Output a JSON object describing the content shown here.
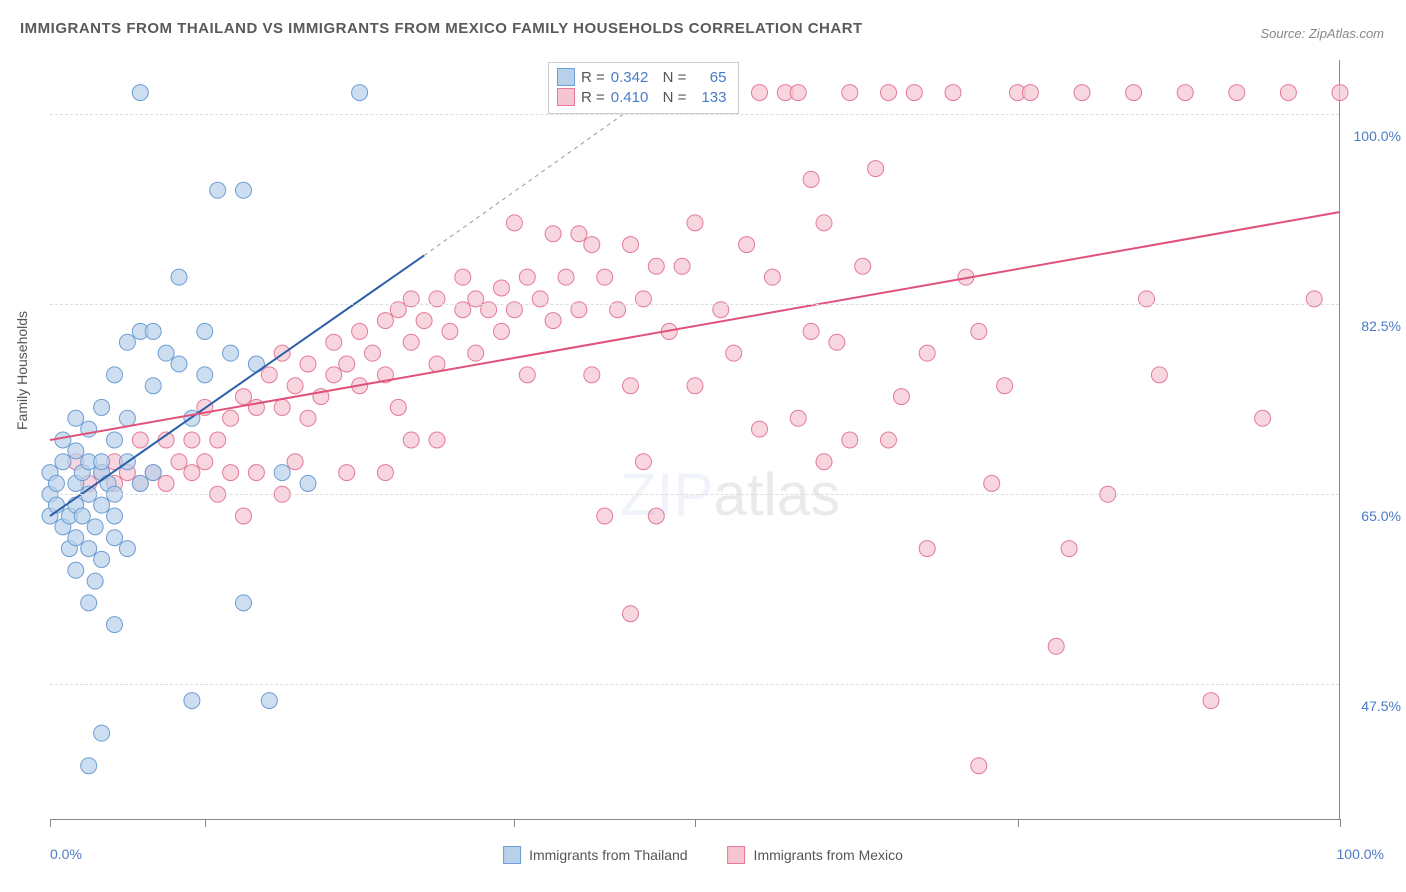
{
  "title": "IMMIGRANTS FROM THAILAND VS IMMIGRANTS FROM MEXICO FAMILY HOUSEHOLDS CORRELATION CHART",
  "source": "Source: ZipAtlas.com",
  "ylabel": "Family Households",
  "xaxis": {
    "min_label": "0.0%",
    "max_label": "100.0%",
    "xlim": [
      0,
      100
    ],
    "ticks": [
      0,
      12,
      36,
      50,
      75,
      100
    ]
  },
  "yaxis": {
    "ylim": [
      35,
      105
    ],
    "gridlines": [
      47.5,
      65.0,
      82.5,
      100.0
    ],
    "labels": [
      "47.5%",
      "65.0%",
      "82.5%",
      "100.0%"
    ]
  },
  "watermark": {
    "part1": "ZIP",
    "part2": "atlas"
  },
  "series": {
    "thailand": {
      "label": "Immigrants from Thailand",
      "fill": "#b8d0ea",
      "stroke": "#6d9ed4",
      "opacity": 0.7,
      "R": "0.342",
      "N": "65",
      "marker_radius": 8,
      "trend": {
        "x1": 0,
        "y1": 63,
        "x2": 29,
        "y2": 87,
        "dash_x2": 48,
        "dash_y2": 103,
        "stroke": "#2b5fa6",
        "width": 2
      },
      "points": [
        [
          0,
          63
        ],
        [
          0,
          65
        ],
        [
          0,
          67
        ],
        [
          0.5,
          64
        ],
        [
          0.5,
          66
        ],
        [
          1,
          62
        ],
        [
          1,
          68
        ],
        [
          1,
          70
        ],
        [
          1.5,
          60
        ],
        [
          1.5,
          63
        ],
        [
          2,
          58
        ],
        [
          2,
          61
        ],
        [
          2,
          64
        ],
        [
          2,
          66
        ],
        [
          2,
          69
        ],
        [
          2.5,
          63
        ],
        [
          2.5,
          67
        ],
        [
          3,
          55
        ],
        [
          3,
          60
        ],
        [
          3,
          65
        ],
        [
          3,
          68
        ],
        [
          3,
          71
        ],
        [
          3.5,
          57
        ],
        [
          3.5,
          62
        ],
        [
          4,
          59
        ],
        [
          4,
          64
        ],
        [
          4,
          67
        ],
        [
          4,
          73
        ],
        [
          4.5,
          66
        ],
        [
          5,
          53
        ],
        [
          5,
          61
        ],
        [
          5,
          65
        ],
        [
          5,
          70
        ],
        [
          5,
          76
        ],
        [
          6,
          68
        ],
        [
          6,
          79
        ],
        [
          7,
          66
        ],
        [
          7,
          80
        ],
        [
          7,
          102
        ],
        [
          8,
          67
        ],
        [
          8,
          75
        ],
        [
          9,
          78
        ],
        [
          10,
          77
        ],
        [
          10,
          85
        ],
        [
          11,
          72
        ],
        [
          12,
          80
        ],
        [
          13,
          93
        ],
        [
          14,
          78
        ],
        [
          16,
          77
        ],
        [
          18,
          67
        ],
        [
          20,
          66
        ],
        [
          4,
          68
        ],
        [
          5,
          63
        ],
        [
          6,
          60
        ],
        [
          2,
          72
        ],
        [
          3,
          40
        ],
        [
          4,
          43
        ],
        [
          11,
          46
        ],
        [
          15,
          55
        ],
        [
          17,
          46
        ],
        [
          8,
          80
        ],
        [
          12,
          76
        ],
        [
          15,
          93
        ],
        [
          24,
          102
        ],
        [
          6,
          72
        ]
      ]
    },
    "mexico": {
      "label": "Immigrants from Mexico",
      "fill": "#f5c5d2",
      "stroke": "#e47a9a",
      "opacity": 0.7,
      "R": "0.410",
      "N": "133",
      "marker_radius": 8,
      "trend": {
        "x1": 0,
        "y1": 70,
        "x2": 100,
        "y2": 91,
        "stroke": "#e0527a",
        "width": 2
      },
      "points": [
        [
          2,
          68
        ],
        [
          3,
          66
        ],
        [
          4,
          67
        ],
        [
          5,
          66
        ],
        [
          5,
          68
        ],
        [
          6,
          67
        ],
        [
          7,
          66
        ],
        [
          8,
          67
        ],
        [
          9,
          66
        ],
        [
          10,
          68
        ],
        [
          11,
          67
        ],
        [
          12,
          68
        ],
        [
          12,
          73
        ],
        [
          13,
          70
        ],
        [
          14,
          67
        ],
        [
          14,
          72
        ],
        [
          15,
          63
        ],
        [
          15,
          74
        ],
        [
          16,
          73
        ],
        [
          17,
          76
        ],
        [
          18,
          73
        ],
        [
          18,
          78
        ],
        [
          19,
          75
        ],
        [
          20,
          72
        ],
        [
          20,
          77
        ],
        [
          21,
          74
        ],
        [
          22,
          76
        ],
        [
          22,
          79
        ],
        [
          23,
          77
        ],
        [
          24,
          75
        ],
        [
          24,
          80
        ],
        [
          25,
          78
        ],
        [
          26,
          76
        ],
        [
          26,
          81
        ],
        [
          27,
          73
        ],
        [
          27,
          82
        ],
        [
          28,
          79
        ],
        [
          28,
          83
        ],
        [
          29,
          81
        ],
        [
          30,
          77
        ],
        [
          30,
          83
        ],
        [
          31,
          80
        ],
        [
          32,
          82
        ],
        [
          32,
          85
        ],
        [
          33,
          78
        ],
        [
          33,
          83
        ],
        [
          34,
          82
        ],
        [
          35,
          80
        ],
        [
          35,
          84
        ],
        [
          36,
          82
        ],
        [
          37,
          76
        ],
        [
          37,
          85
        ],
        [
          38,
          83
        ],
        [
          39,
          81
        ],
        [
          40,
          85
        ],
        [
          41,
          82
        ],
        [
          42,
          88
        ],
        [
          42,
          76
        ],
        [
          43,
          85
        ],
        [
          44,
          82
        ],
        [
          45,
          75
        ],
        [
          45,
          88
        ],
        [
          46,
          83
        ],
        [
          47,
          86
        ],
        [
          48,
          80
        ],
        [
          49,
          86
        ],
        [
          50,
          75
        ],
        [
          50,
          90
        ],
        [
          52,
          82
        ],
        [
          53,
          78
        ],
        [
          54,
          88
        ],
        [
          55,
          102
        ],
        [
          56,
          85
        ],
        [
          57,
          102
        ],
        [
          58,
          72
        ],
        [
          59,
          80
        ],
        [
          60,
          90
        ],
        [
          61,
          79
        ],
        [
          62,
          102
        ],
        [
          63,
          86
        ],
        [
          64,
          95
        ],
        [
          65,
          102
        ],
        [
          66,
          74
        ],
        [
          67,
          102
        ],
        [
          68,
          78
        ],
        [
          70,
          102
        ],
        [
          71,
          85
        ],
        [
          72,
          80
        ],
        [
          73,
          66
        ],
        [
          74,
          75
        ],
        [
          75,
          102
        ],
        [
          76,
          102
        ],
        [
          78,
          51
        ],
        [
          79,
          60
        ],
        [
          80,
          102
        ],
        [
          82,
          65
        ],
        [
          84,
          102
        ],
        [
          86,
          76
        ],
        [
          88,
          102
        ],
        [
          90,
          46
        ],
        [
          92,
          102
        ],
        [
          94,
          72
        ],
        [
          96,
          102
        ],
        [
          98,
          83
        ],
        [
          100,
          102
        ],
        [
          43,
          63
        ],
        [
          45,
          54
        ],
        [
          60,
          68
        ],
        [
          65,
          70
        ],
        [
          72,
          40
        ],
        [
          55,
          71
        ],
        [
          36,
          90
        ],
        [
          39,
          89
        ],
        [
          41,
          89
        ],
        [
          30,
          70
        ],
        [
          16,
          67
        ],
        [
          18,
          65
        ],
        [
          11,
          70
        ],
        [
          9,
          70
        ],
        [
          7,
          70
        ],
        [
          58,
          102
        ],
        [
          59,
          94
        ],
        [
          62,
          70
        ],
        [
          48,
          102
        ],
        [
          46,
          68
        ],
        [
          23,
          67
        ],
        [
          13,
          65
        ],
        [
          19,
          68
        ],
        [
          26,
          67
        ],
        [
          28,
          70
        ],
        [
          47,
          63
        ],
        [
          68,
          60
        ],
        [
          85,
          83
        ]
      ]
    }
  },
  "bottom_legend": [
    {
      "key": "thailand",
      "label": "Immigrants from Thailand"
    },
    {
      "key": "mexico",
      "label": "Immigrants from Mexico"
    }
  ]
}
